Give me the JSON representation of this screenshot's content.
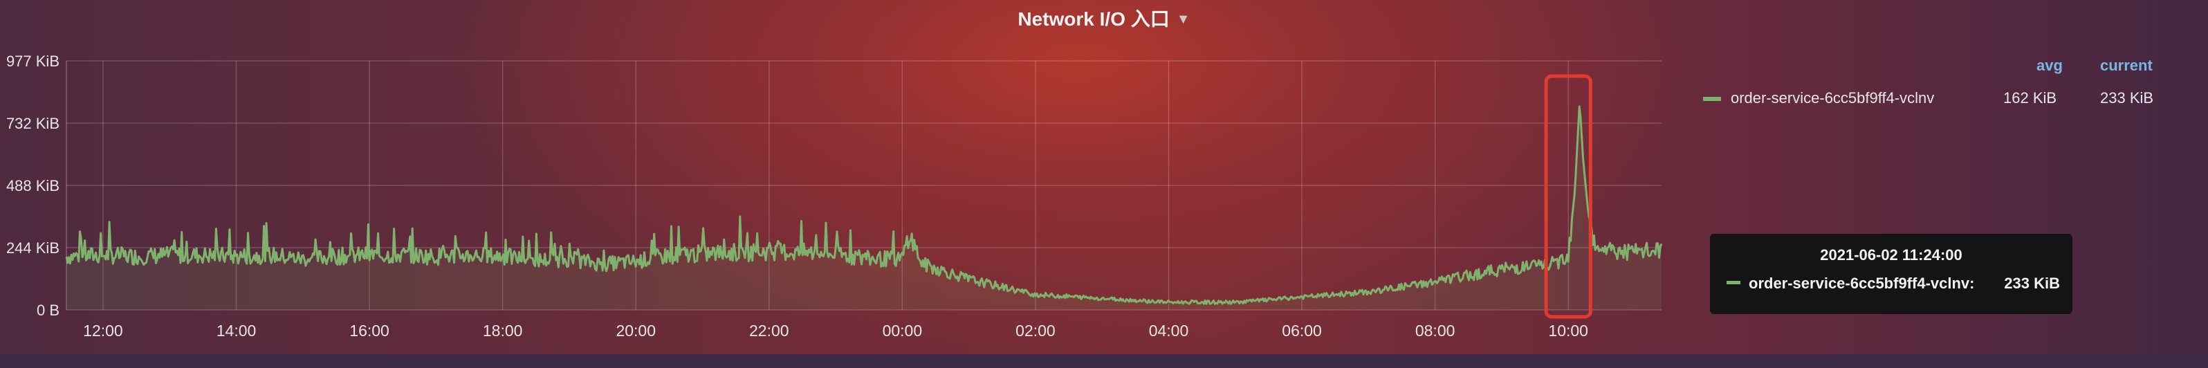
{
  "panel": {
    "title": "Network I/O 入口",
    "menu_icon": "caret-down-icon"
  },
  "legend": {
    "headers": {
      "avg": "avg",
      "current": "current"
    },
    "series": [
      {
        "name": "order-service-6cc5bf9ff4-vclnv",
        "avg": "162 KiB",
        "current": "233 KiB",
        "color": "#7eb26d"
      }
    ]
  },
  "tooltip": {
    "time": "2021-06-02 11:24:00",
    "series_label": "order-service-6cc5bf9ff4-vclnv:",
    "value": "233 KiB"
  },
  "highlight": {
    "color": "#e03b2e",
    "start": "09:40",
    "end": "10:20"
  },
  "chart_data": {
    "type": "line",
    "y_tick_labels": [
      "977 KiB",
      "732 KiB",
      "488 KiB",
      "244 KiB",
      "0 B"
    ],
    "x_tick_labels": [
      "12:00",
      "14:00",
      "16:00",
      "18:00",
      "20:00",
      "22:00",
      "00:00",
      "02:00",
      "04:00",
      "06:00",
      "08:00",
      "10:00"
    ],
    "ylim_kib": [
      0,
      977
    ],
    "x_range_hours": [
      11.45,
      35.4
    ],
    "grid": true,
    "series": [
      {
        "name": "order-service-6cc5bf9ff4-vclnv",
        "color": "#7eb26d",
        "points_kib": [
          [
            11.45,
            210
          ],
          [
            12.0,
            215
          ],
          [
            12.5,
            210
          ],
          [
            13.0,
            215
          ],
          [
            13.5,
            215
          ],
          [
            14.0,
            210
          ],
          [
            14.5,
            215
          ],
          [
            15.0,
            200
          ],
          [
            15.5,
            210
          ],
          [
            16.0,
            215
          ],
          [
            16.5,
            215
          ],
          [
            17.0,
            210
          ],
          [
            17.5,
            215
          ],
          [
            18.0,
            210
          ],
          [
            18.5,
            195
          ],
          [
            19.0,
            200
          ],
          [
            19.5,
            180
          ],
          [
            20.0,
            190
          ],
          [
            20.5,
            215
          ],
          [
            21.0,
            220
          ],
          [
            21.5,
            225
          ],
          [
            22.0,
            230
          ],
          [
            22.5,
            225
          ],
          [
            23.0,
            220
          ],
          [
            23.5,
            200
          ],
          [
            24.0,
            200
          ],
          [
            24.1,
            300
          ],
          [
            24.3,
            180
          ],
          [
            25.0,
            120
          ],
          [
            26.0,
            60
          ],
          [
            27.0,
            45
          ],
          [
            28.0,
            30
          ],
          [
            29.0,
            30
          ],
          [
            30.0,
            50
          ],
          [
            31.0,
            70
          ],
          [
            32.0,
            110
          ],
          [
            33.0,
            160
          ],
          [
            33.8,
            180
          ],
          [
            34.0,
            220
          ],
          [
            34.1,
            470
          ],
          [
            34.17,
            820
          ],
          [
            34.22,
            600
          ],
          [
            34.3,
            380
          ],
          [
            34.4,
            260
          ],
          [
            34.7,
            230
          ],
          [
            35.0,
            225
          ],
          [
            35.4,
            233
          ]
        ]
      }
    ]
  }
}
